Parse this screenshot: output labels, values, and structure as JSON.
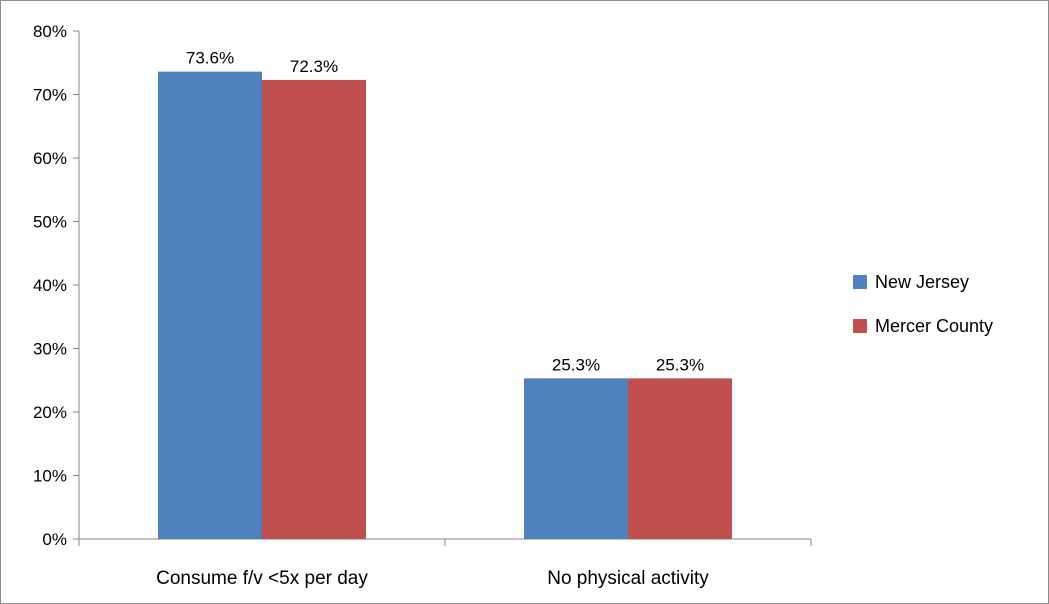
{
  "chart_data": {
    "type": "bar",
    "categories": [
      "Consume f/v <5x per day",
      "No physical activity"
    ],
    "series": [
      {
        "name": "New Jersey",
        "values": [
          73.6,
          25.3
        ],
        "labels": [
          "73.6%",
          "25.3%"
        ],
        "color": "#4f81bd"
      },
      {
        "name": "Mercer County",
        "values": [
          72.3,
          25.3
        ],
        "labels": [
          "72.3%",
          "25.3%"
        ],
        "color": "#c0504d"
      }
    ],
    "ylim": [
      0,
      80
    ],
    "yticks": [
      0,
      10,
      20,
      30,
      40,
      50,
      60,
      70,
      80
    ],
    "ytick_labels": [
      "0%",
      "10%",
      "20%",
      "30%",
      "40%",
      "50%",
      "60%",
      "70%",
      "80%"
    ],
    "title": "",
    "xlabel": "",
    "ylabel": "",
    "grid": false,
    "legend_position": "right"
  }
}
